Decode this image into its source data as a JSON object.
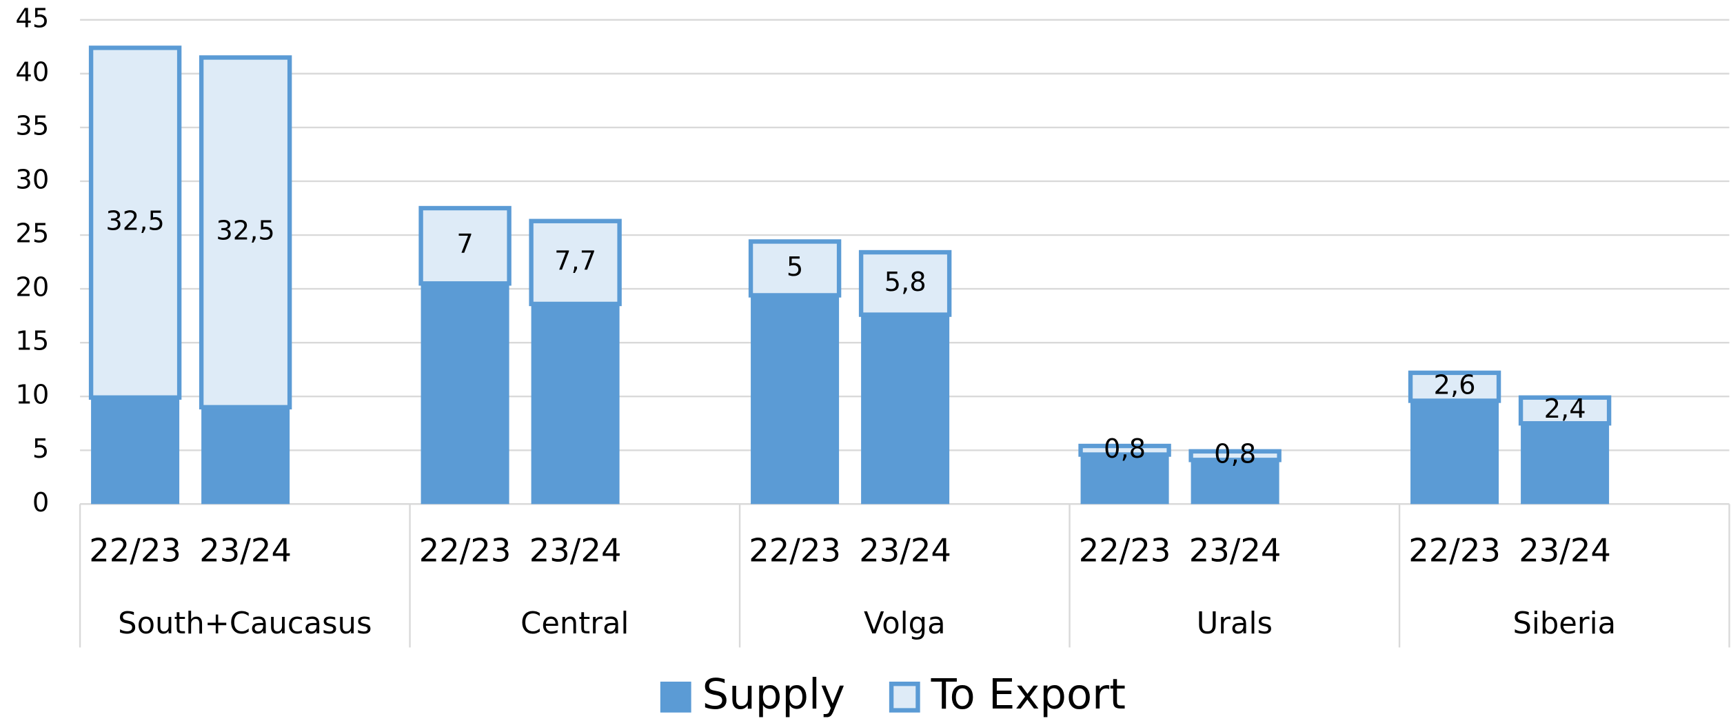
{
  "chart_data": {
    "type": "bar",
    "stacked": true,
    "categories": [
      "22/23",
      "23/24",
      "22/23",
      "23/24",
      "22/23",
      "23/24",
      "22/23",
      "23/24",
      "22/23",
      "23/24"
    ],
    "groups": [
      "South+Caucasus",
      "Central",
      "Volga",
      "Urals",
      "Siberia"
    ],
    "series": [
      {
        "name": "Supply",
        "color": "#5b9bd5",
        "values": [
          9.9,
          9.0,
          20.5,
          18.6,
          19.4,
          17.6,
          4.6,
          4.1,
          9.6,
          7.5
        ]
      },
      {
        "name": "To Export",
        "color": "#deebf7",
        "edge": "#5b9bd5",
        "values": [
          32.5,
          32.5,
          7,
          7.7,
          5,
          5.8,
          0.8,
          0.8,
          2.6,
          2.4
        ],
        "value_labels": [
          "32,5",
          "32,5",
          "7",
          "7,7",
          "5",
          "5,8",
          "0,8",
          "0,8",
          "2,6",
          "2,4"
        ]
      }
    ],
    "ylim": [
      0,
      45
    ],
    "yticks": [
      0,
      5,
      10,
      15,
      20,
      25,
      30,
      35,
      40,
      45
    ],
    "grid": true,
    "legend": "bottom"
  }
}
